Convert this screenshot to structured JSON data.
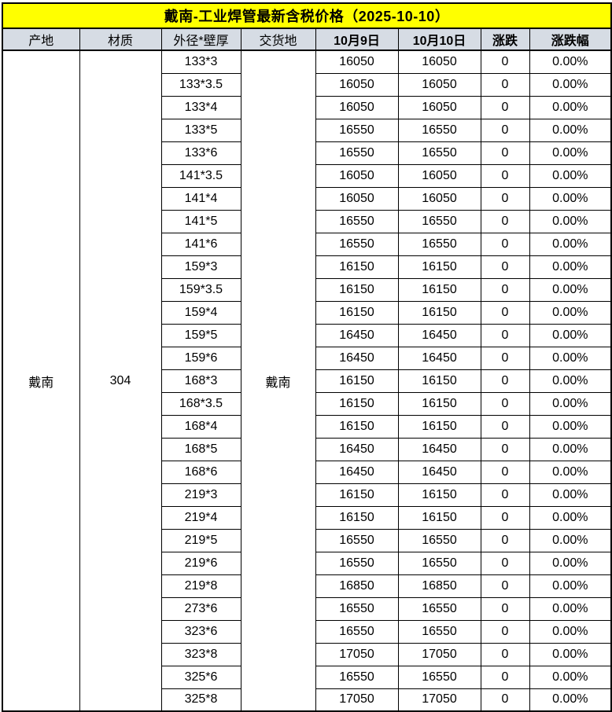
{
  "title": "戴南-工业焊管最新含税价格（2025-10-10）",
  "colors": {
    "title_bg": "#FFFF00",
    "header_bg": "#D6DCE4",
    "border": "#000000",
    "text": "#000000"
  },
  "merged": {
    "origin": "戴南",
    "material": "304",
    "delivery": "戴南"
  },
  "chart_data": {
    "type": "table",
    "title": "戴南-工业焊管最新含税价格（2025-10-10）",
    "columns": [
      "产地",
      "材质",
      "外径*壁厚",
      "交货地",
      "10月9日",
      "10月10日",
      "涨跌",
      "涨跌幅"
    ],
    "merged_columns": {
      "产地": "戴南",
      "材质": "304",
      "交货地": "戴南"
    },
    "rows": [
      [
        "133*3",
        "16050",
        "16050",
        "0",
        "0.00%"
      ],
      [
        "133*3.5",
        "16050",
        "16050",
        "0",
        "0.00%"
      ],
      [
        "133*4",
        "16050",
        "16050",
        "0",
        "0.00%"
      ],
      [
        "133*5",
        "16550",
        "16550",
        "0",
        "0.00%"
      ],
      [
        "133*6",
        "16550",
        "16550",
        "0",
        "0.00%"
      ],
      [
        "141*3.5",
        "16050",
        "16050",
        "0",
        "0.00%"
      ],
      [
        "141*4",
        "16050",
        "16050",
        "0",
        "0.00%"
      ],
      [
        "141*5",
        "16550",
        "16550",
        "0",
        "0.00%"
      ],
      [
        "141*6",
        "16550",
        "16550",
        "0",
        "0.00%"
      ],
      [
        "159*3",
        "16150",
        "16150",
        "0",
        "0.00%"
      ],
      [
        "159*3.5",
        "16150",
        "16150",
        "0",
        "0.00%"
      ],
      [
        "159*4",
        "16150",
        "16150",
        "0",
        "0.00%"
      ],
      [
        "159*5",
        "16450",
        "16450",
        "0",
        "0.00%"
      ],
      [
        "159*6",
        "16450",
        "16450",
        "0",
        "0.00%"
      ],
      [
        "168*3",
        "16150",
        "16150",
        "0",
        "0.00%"
      ],
      [
        "168*3.5",
        "16150",
        "16150",
        "0",
        "0.00%"
      ],
      [
        "168*4",
        "16150",
        "16150",
        "0",
        "0.00%"
      ],
      [
        "168*5",
        "16450",
        "16450",
        "0",
        "0.00%"
      ],
      [
        "168*6",
        "16450",
        "16450",
        "0",
        "0.00%"
      ],
      [
        "219*3",
        "16150",
        "16150",
        "0",
        "0.00%"
      ],
      [
        "219*4",
        "16150",
        "16150",
        "0",
        "0.00%"
      ],
      [
        "219*5",
        "16550",
        "16550",
        "0",
        "0.00%"
      ],
      [
        "219*6",
        "16550",
        "16550",
        "0",
        "0.00%"
      ],
      [
        "219*8",
        "16850",
        "16850",
        "0",
        "0.00%"
      ],
      [
        "273*6",
        "16550",
        "16550",
        "0",
        "0.00%"
      ],
      [
        "323*6",
        "16550",
        "16550",
        "0",
        "0.00%"
      ],
      [
        "323*8",
        "17050",
        "17050",
        "0",
        "0.00%"
      ],
      [
        "325*6",
        "16550",
        "16550",
        "0",
        "0.00%"
      ],
      [
        "325*8",
        "17050",
        "17050",
        "0",
        "0.00%"
      ]
    ]
  }
}
